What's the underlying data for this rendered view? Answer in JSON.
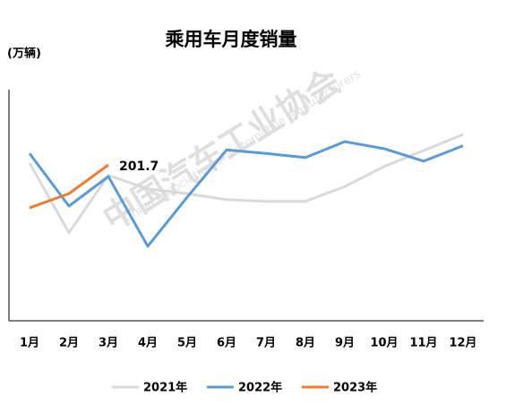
{
  "chart_data": {
    "type": "line",
    "title": "乘用车月度销量",
    "y_label": "(万辆)",
    "watermark": [
      "中国汽车工业协会",
      "China Association of Automobile Manufacturers"
    ],
    "categories": [
      "1月",
      "2月",
      "3月",
      "4月",
      "5月",
      "6月",
      "7月",
      "8月",
      "9月",
      "10月",
      "11月",
      "12月"
    ],
    "series": [
      {
        "name": "2021年",
        "color": "#d9d9d9",
        "values": [
          205,
          87,
          184,
          161,
          153,
          143,
          140,
          140,
          165,
          199,
          226,
          253
        ]
      },
      {
        "name": "2022年",
        "color": "#5b9bd5",
        "values": [
          221,
          132,
          182,
          64,
          147,
          227,
          221,
          214,
          241,
          229,
          208,
          234
        ]
      },
      {
        "name": "2023年",
        "color": "#ed7d31",
        "values": [
          129,
          153,
          201.7,
          null,
          null,
          null,
          null,
          null,
          null,
          null,
          null,
          null
        ]
      }
    ],
    "data_label": {
      "series": 2,
      "index": 2
    },
    "ylim": [
      -62,
      329
    ],
    "legend": "bottom"
  }
}
